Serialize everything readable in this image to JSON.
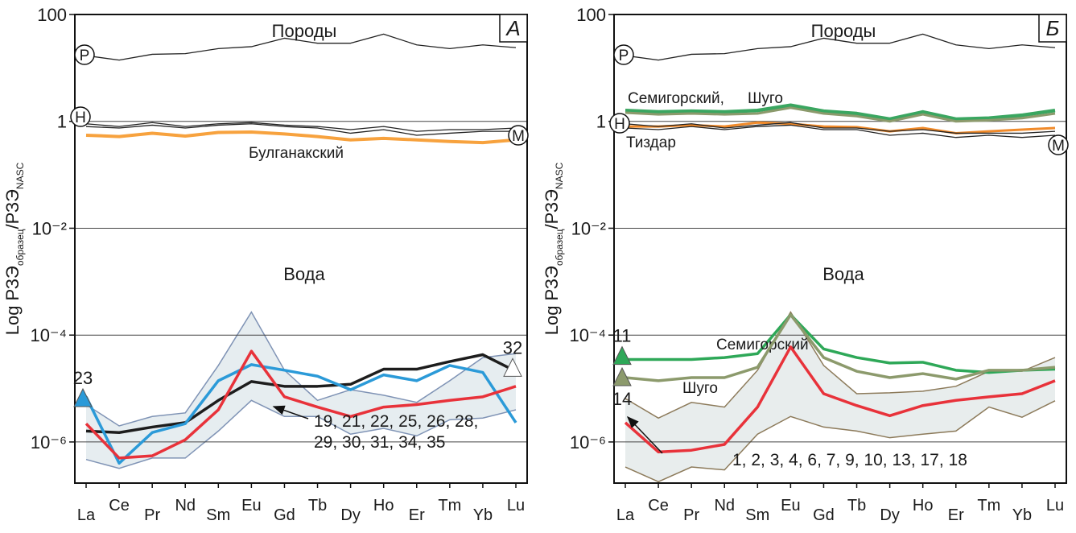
{
  "chart_data": [
    {
      "type": "line",
      "log_y": true,
      "grid": true,
      "ylabel_parts": [
        "Log РЗЭ",
        "образец",
        "/РЗЭ",
        "NASC"
      ],
      "categories": [
        "La",
        "Ce",
        "Pr",
        "Nd",
        "Sm",
        "Eu",
        "Gd",
        "Tb",
        "Dy",
        "Ho",
        "Er",
        "Tm",
        "Yb",
        "Lu"
      ],
      "ylim": [
        1.7e-07,
        100
      ],
      "yticks": [
        100,
        1,
        {
          "value": 0.01,
          "label": "10⁻²"
        },
        {
          "value": 0.0001,
          "label": "10⁻⁴"
        },
        {
          "value": 1e-06,
          "label": "10⁻⁶"
        }
      ],
      "band": {
        "upper": [
          5e-06,
          2e-06,
          3e-06,
          3.5e-06,
          2.7e-05,
          0.00027,
          2.2e-05,
          6e-06,
          9.5e-06,
          7.5e-06,
          5.5e-06,
          1.4e-05,
          3.8e-05,
          4.5e-05
        ],
        "lower": [
          4.7e-07,
          3.2e-07,
          5e-07,
          5e-07,
          1.6e-06,
          6e-06,
          3e-06,
          3e-06,
          1.4e-06,
          1.8e-06,
          1.3e-06,
          2.6e-06,
          2.8e-06,
          4e-06
        ],
        "fill": "#e6edf0",
        "stroke": "#7f93b5"
      },
      "series": [
        {
          "color": "#222222",
          "width": 1.3,
          "values": [
            17,
            14,
            18,
            18.5,
            23,
            25,
            36,
            29,
            29,
            43,
            27,
            23,
            27,
            24
          ]
        },
        {
          "color": "#222222",
          "width": 1.3,
          "values": [
            0.9,
            0.8,
            0.95,
            0.8,
            0.9,
            0.95,
            0.85,
            0.8,
            0.7,
            0.8,
            0.65,
            0.7,
            0.7,
            0.75
          ]
        },
        {
          "color": "#222222",
          "width": 1.3,
          "values": [
            0.8,
            0.75,
            0.85,
            0.75,
            0.85,
            0.9,
            0.8,
            0.75,
            0.6,
            0.7,
            0.55,
            0.6,
            0.65,
            0.65
          ]
        },
        {
          "name": "Булганакский",
          "color": "#f7a23e",
          "width": 4,
          "values": [
            0.55,
            0.52,
            0.6,
            0.53,
            0.62,
            0.63,
            0.58,
            0.52,
            0.45,
            0.48,
            0.45,
            0.42,
            0.4,
            0.45
          ]
        },
        {
          "color": "#1d1d1d",
          "width": 3.5,
          "values": [
            1.6e-06,
            1.5e-06,
            1.9e-06,
            2.3e-06,
            6e-06,
            1.35e-05,
            1.1e-05,
            1.1e-05,
            1.2e-05,
            2.3e-05,
            2.3e-05,
            3.2e-05,
            4.3e-05,
            2.1e-05
          ]
        },
        {
          "color": "#2b9ad8",
          "width": 3.5,
          "values": [
            7e-06,
            4e-07,
            1.5e-06,
            2.2e-06,
            1.4e-05,
            2.8e-05,
            2.2e-05,
            1.7e-05,
            9.5e-06,
            1.8e-05,
            1.4e-05,
            2.7e-05,
            2e-05,
            2.3e-06
          ]
        },
        {
          "color": "#e8323a",
          "width": 3.5,
          "values": [
            2.2e-06,
            5e-07,
            5.5e-07,
            1.1e-06,
            4e-06,
            5e-05,
            7e-06,
            4.5e-06,
            3e-06,
            4.5e-06,
            5e-06,
            6e-06,
            7e-06,
            1.1e-05
          ]
        }
      ],
      "markers": [
        {
          "label": "23",
          "category": "La",
          "value": 6.5e-06,
          "color": "#2b9ad8"
        },
        {
          "label": "32",
          "category": "Lu",
          "value": 2.4e-05,
          "color": "#ffffff"
        }
      ],
      "annotations": {
        "top_label": "Породы",
        "water_label": "Вода",
        "panel_letter": "А",
        "curve_letters": [
          "Р",
          "Н",
          "М"
        ],
        "samples_note": [
          "19, 21, 22, 25, 26, 28,",
          "29, 30, 31, 34, 35"
        ]
      }
    },
    {
      "type": "line",
      "log_y": true,
      "grid": true,
      "ylabel_parts": [
        "Log РЗЭ",
        "образец",
        "/РЗЭ",
        "NASC"
      ],
      "categories": [
        "La",
        "Ce",
        "Pr",
        "Nd",
        "Sm",
        "Eu",
        "Gd",
        "Tb",
        "Dy",
        "Ho",
        "Er",
        "Tm",
        "Yb",
        "Lu"
      ],
      "ylim": [
        1.7e-07,
        100
      ],
      "yticks": [
        100,
        1,
        {
          "value": 0.01,
          "label": "10⁻²"
        },
        {
          "value": 0.0001,
          "label": "10⁻⁴"
        },
        {
          "value": 1e-06,
          "label": "10⁻⁶"
        }
      ],
      "band": {
        "upper": [
          6.5e-06,
          2.8e-06,
          5.5e-06,
          4.5e-06,
          2.2e-05,
          0.00027,
          2.7e-05,
          8e-06,
          8.3e-06,
          8.9e-06,
          1.1e-05,
          2.1e-05,
          2.1e-05,
          3.8e-05
        ],
        "lower": [
          3.4e-07,
          1.8e-07,
          3.4e-07,
          3e-07,
          1.4e-06,
          3e-06,
          1.9e-06,
          1.6e-06,
          1.2e-06,
          1.4e-06,
          1.6e-06,
          4.5e-06,
          2.9e-06,
          5.9e-06
        ],
        "fill": "#e8eded",
        "stroke": "#8c7a5a"
      },
      "series": [
        {
          "color": "#222222",
          "width": 1.3,
          "values": [
            17,
            14,
            18,
            18.5,
            23,
            25,
            36,
            29,
            29,
            43,
            27,
            23,
            27,
            24
          ]
        },
        {
          "name": "Семигорский,",
          "color": "#3aa660",
          "width": 4.5,
          "values": [
            1.6,
            1.5,
            1.55,
            1.5,
            1.6,
            2.0,
            1.55,
            1.4,
            1.1,
            1.5,
            1.1,
            1.15,
            1.3,
            1.6
          ]
        },
        {
          "name": "Шуго",
          "color": "#8c9a6c",
          "width": 3,
          "values": [
            1.45,
            1.35,
            1.4,
            1.35,
            1.4,
            1.8,
            1.4,
            1.25,
            1.0,
            1.35,
            1.0,
            1.05,
            1.15,
            1.4
          ]
        },
        {
          "name": "Тиздар",
          "color": "#f08a2a",
          "width": 3,
          "values": [
            0.8,
            0.8,
            0.85,
            0.8,
            0.95,
            0.9,
            0.8,
            0.78,
            0.65,
            0.75,
            0.6,
            0.65,
            0.7,
            0.75
          ]
        },
        {
          "color": "#222222",
          "width": 1.3,
          "values": [
            0.9,
            0.8,
            0.9,
            0.75,
            0.85,
            0.95,
            0.75,
            0.75,
            0.65,
            0.7,
            0.6,
            0.6,
            0.6,
            0.65
          ]
        },
        {
          "color": "#222222",
          "width": 1.3,
          "values": [
            0.75,
            0.7,
            0.8,
            0.7,
            0.8,
            0.85,
            0.7,
            0.7,
            0.55,
            0.6,
            0.5,
            0.55,
            0.5,
            0.55
          ]
        },
        {
          "name": "Семигорский",
          "color": "#2ea858",
          "width": 3.5,
          "values": [
            3.5e-05,
            3.5e-05,
            3.5e-05,
            3.8e-05,
            4.5e-05,
            0.00024,
            5.5e-05,
            3.8e-05,
            3e-05,
            3.1e-05,
            2.2e-05,
            2e-05,
            2.2e-05,
            2.3e-05
          ]
        },
        {
          "name": "Шуго",
          "color": "#8c9a6c",
          "width": 3.5,
          "values": [
            1.6e-05,
            1.4e-05,
            1.6e-05,
            1.6e-05,
            2.5e-05,
            0.00024,
            3.8e-05,
            2.1e-05,
            1.6e-05,
            1.9e-05,
            1.5e-05,
            2.2e-05,
            2.2e-05,
            2.5e-05
          ]
        },
        {
          "color": "#e8323a",
          "width": 3.5,
          "values": [
            2.3e-06,
            6.5e-07,
            7e-07,
            9e-07,
            4.5e-06,
            6e-05,
            8e-06,
            4.8e-06,
            3.1e-06,
            4.8e-06,
            6e-06,
            7e-06,
            8e-06,
            1.4e-05
          ]
        }
      ],
      "markers": [
        {
          "label": "11",
          "category": "La",
          "value": 4e-05,
          "color": "#2ea858"
        },
        {
          "label": "14",
          "category": "La",
          "value": 1.6e-05,
          "color": "#8c9a6c"
        }
      ],
      "annotations": {
        "top_label": "Породы",
        "water_label": "Вода",
        "panel_letter": "Б",
        "curve_letters": [
          "Р",
          "Н",
          "М"
        ],
        "samples_note": [
          "1, 2, 3, 4, 6, 7, 9, 10, 13, 17, 18"
        ]
      }
    }
  ]
}
